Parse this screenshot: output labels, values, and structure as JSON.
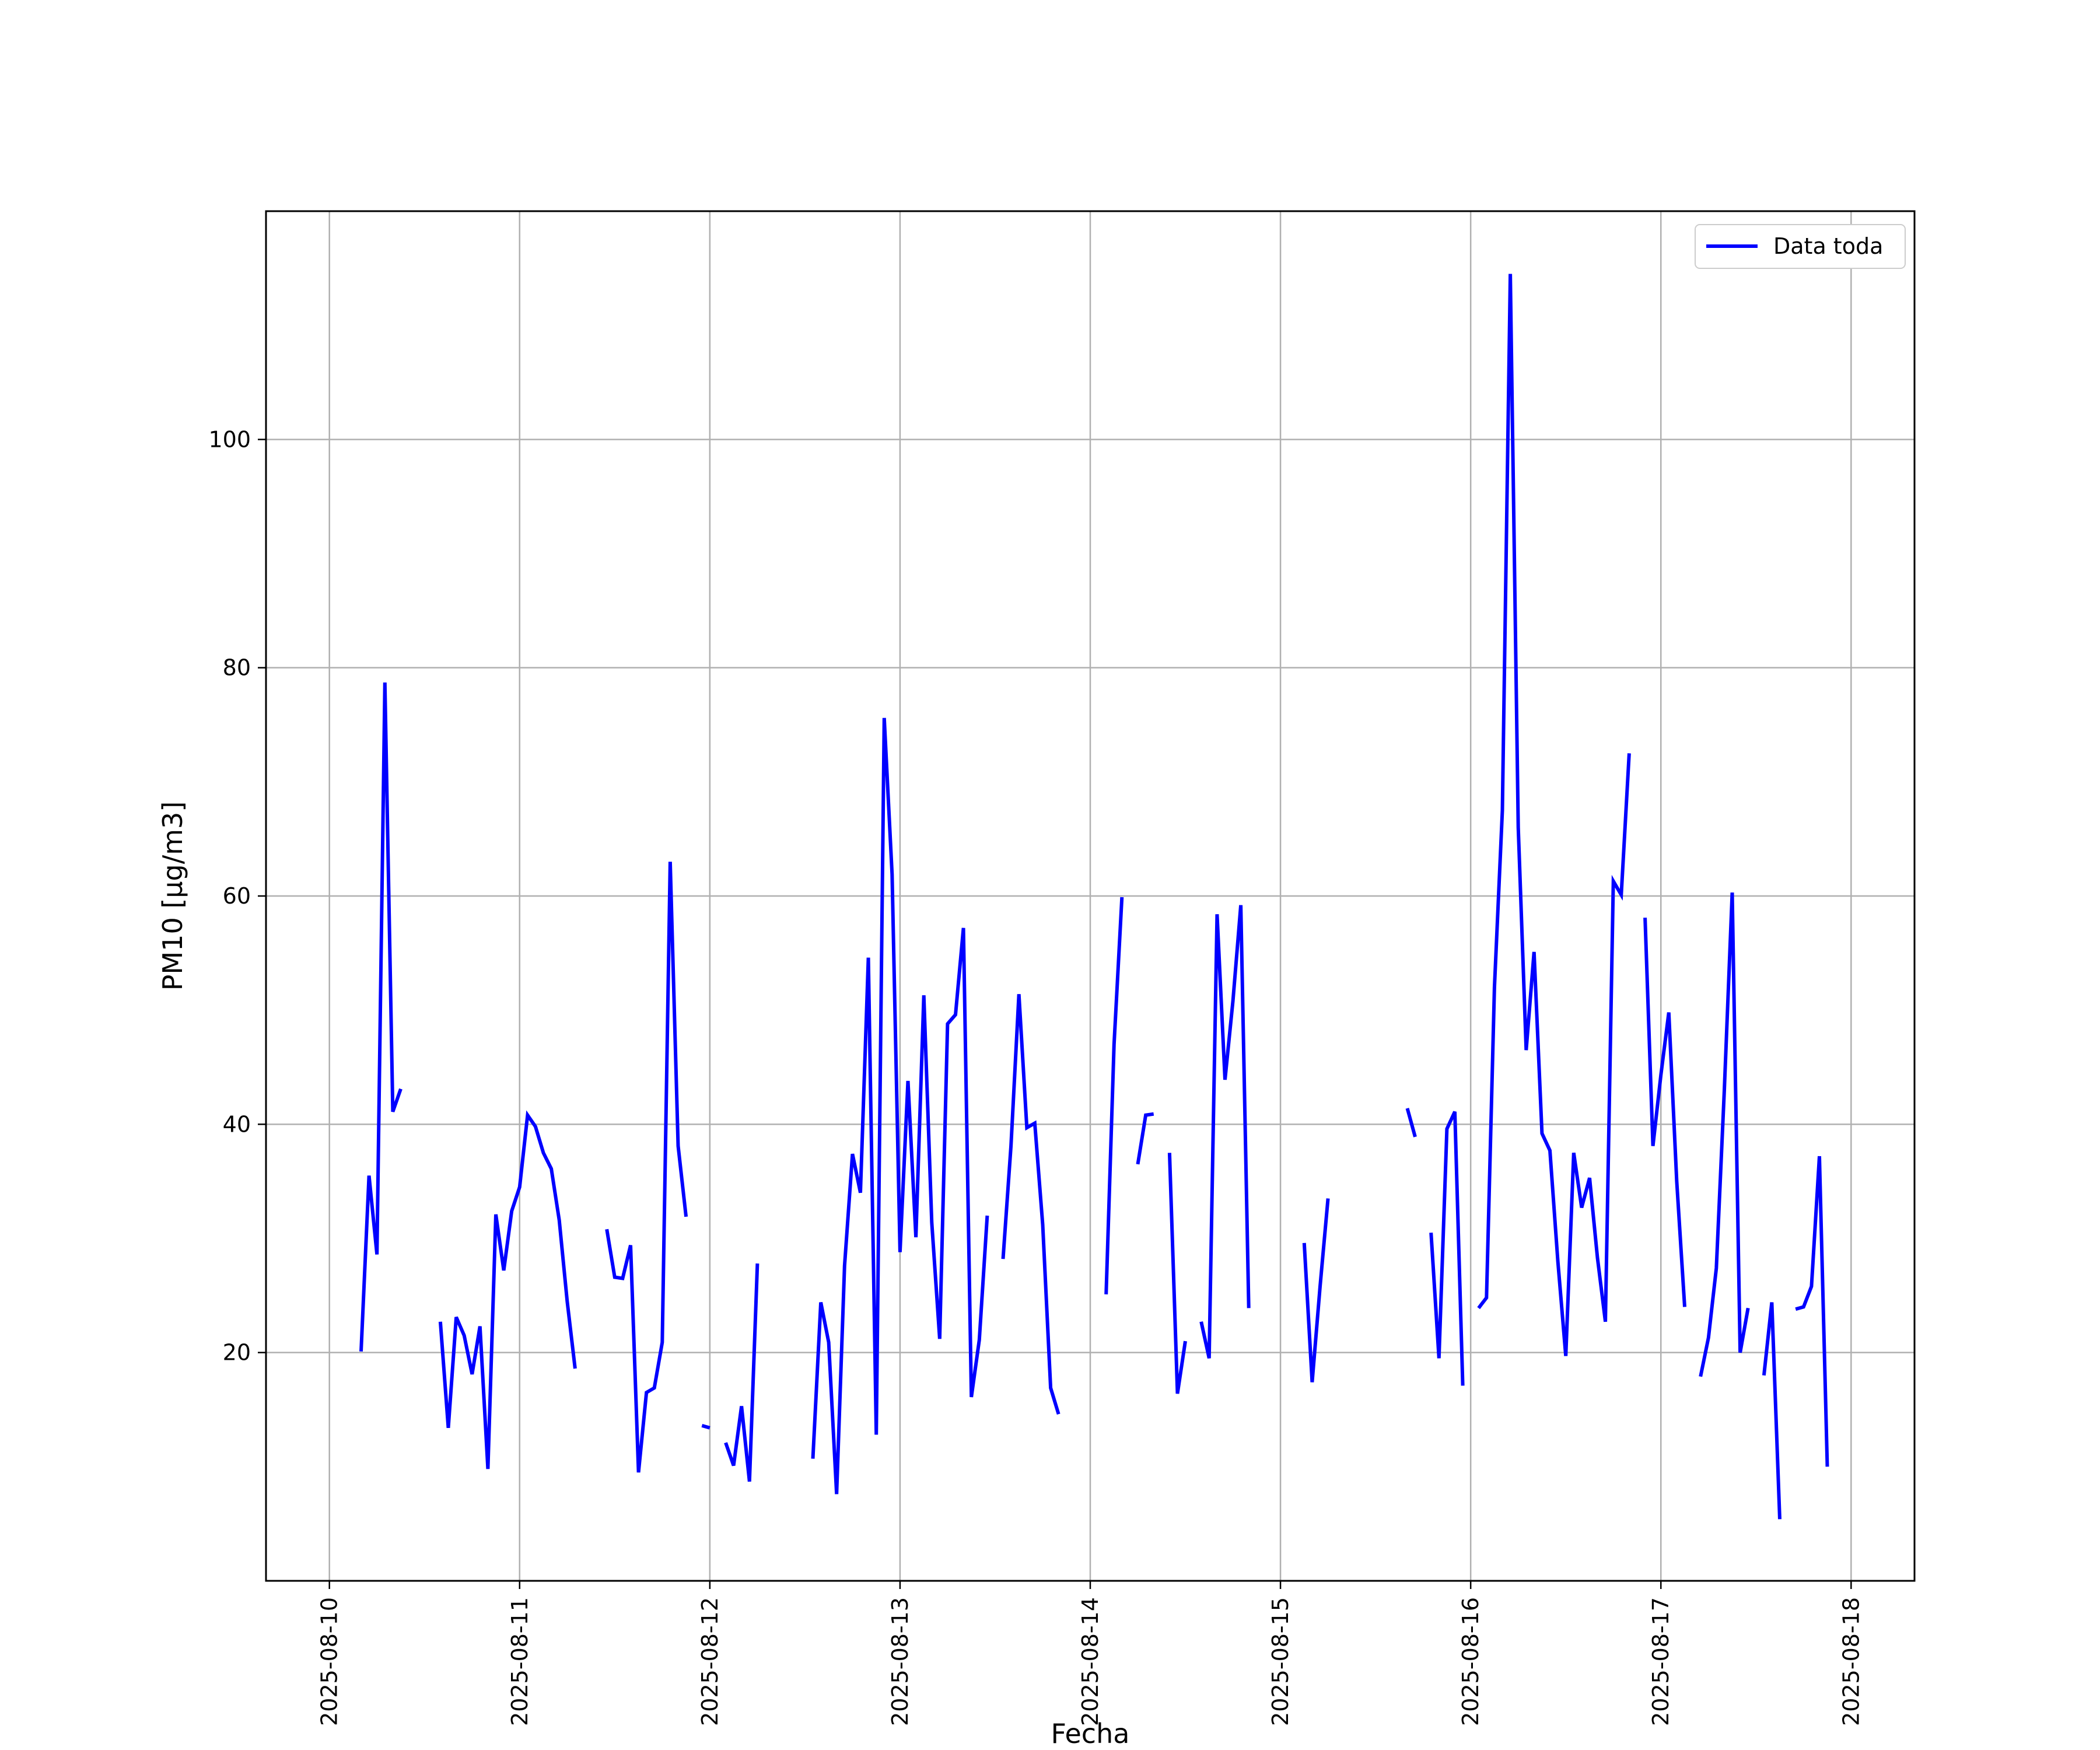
{
  "chart_data": {
    "type": "line",
    "title": "",
    "xlabel": "Fecha",
    "ylabel": "PM10 [μg/m3]",
    "xlim": [
      "2025-08-09T16:00",
      "2025-08-18T08:00"
    ],
    "ylim": [
      0,
      120
    ],
    "grid": true,
    "legend_position": "top-right",
    "x_tick_labels": [
      "2025-08-10",
      "2025-08-11",
      "2025-08-12",
      "2025-08-13",
      "2025-08-14",
      "2025-08-15",
      "2025-08-16",
      "2025-08-17",
      "2025-08-18"
    ],
    "y_ticks": [
      20,
      40,
      60,
      80,
      100
    ],
    "series": [
      {
        "name": "Data toda",
        "color": "#0000ff",
        "points": [
          [
            "2025-08-10T04:00",
            20.1
          ],
          [
            "2025-08-10T05:00",
            35.5
          ],
          [
            "2025-08-10T06:00",
            28.6
          ],
          [
            "2025-08-10T07:00",
            78.7
          ],
          [
            "2025-08-10T08:00",
            41.1
          ],
          [
            "2025-08-10T09:00",
            43.1
          ],
          [
            "2025-08-10T10:00",
            null
          ],
          [
            "2025-08-10T11:00",
            null
          ],
          [
            "2025-08-10T12:00",
            null
          ],
          [
            "2025-08-10T13:00",
            null
          ],
          [
            "2025-08-10T14:00",
            22.7
          ],
          [
            "2025-08-10T15:00",
            13.4
          ],
          [
            "2025-08-10T16:00",
            23.1
          ],
          [
            "2025-08-10T17:00",
            21.5
          ],
          [
            "2025-08-10T18:00",
            18.1
          ],
          [
            "2025-08-10T19:00",
            22.3
          ],
          [
            "2025-08-10T20:00",
            9.8
          ],
          [
            "2025-08-10T21:00",
            32.1
          ],
          [
            "2025-08-10T22:00",
            27.2
          ],
          [
            "2025-08-10T23:00",
            32.4
          ],
          [
            "2025-08-11T00:00",
            34.5
          ],
          [
            "2025-08-11T01:00",
            40.8
          ],
          [
            "2025-08-11T02:00",
            39.8
          ],
          [
            "2025-08-11T03:00",
            37.5
          ],
          [
            "2025-08-11T04:00",
            36.1
          ],
          [
            "2025-08-11T05:00",
            31.6
          ],
          [
            "2025-08-11T06:00",
            24.5
          ],
          [
            "2025-08-11T07:00",
            18.6
          ],
          [
            "2025-08-11T08:00",
            null
          ],
          [
            "2025-08-11T09:00",
            null
          ],
          [
            "2025-08-11T10:00",
            null
          ],
          [
            "2025-08-11T11:00",
            30.8
          ],
          [
            "2025-08-11T12:00",
            26.6
          ],
          [
            "2025-08-11T13:00",
            26.5
          ],
          [
            "2025-08-11T14:00",
            29.4
          ],
          [
            "2025-08-11T15:00",
            9.5
          ],
          [
            "2025-08-11T16:00",
            16.5
          ],
          [
            "2025-08-11T17:00",
            16.9
          ],
          [
            "2025-08-11T18:00",
            20.9
          ],
          [
            "2025-08-11T19:00",
            63.0
          ],
          [
            "2025-08-11T20:00",
            38.1
          ],
          [
            "2025-08-11T21:00",
            31.9
          ],
          [
            "2025-08-11T22:00",
            null
          ],
          [
            "2025-08-11T23:00",
            13.6
          ],
          [
            "2025-08-12T00:00",
            13.4
          ],
          [
            "2025-08-12T01:00",
            null
          ],
          [
            "2025-08-12T02:00",
            12.1
          ],
          [
            "2025-08-12T03:00",
            10.1
          ],
          [
            "2025-08-12T04:00",
            15.3
          ],
          [
            "2025-08-12T05:00",
            8.7
          ],
          [
            "2025-08-12T06:00",
            27.8
          ],
          [
            "2025-08-12T07:00",
            null
          ],
          [
            "2025-08-12T08:00",
            null
          ],
          [
            "2025-08-12T09:00",
            null
          ],
          [
            "2025-08-12T10:00",
            null
          ],
          [
            "2025-08-12T11:00",
            null
          ],
          [
            "2025-08-12T12:00",
            null
          ],
          [
            "2025-08-12T13:00",
            10.7
          ],
          [
            "2025-08-12T14:00",
            24.4
          ],
          [
            "2025-08-12T15:00",
            20.9
          ],
          [
            "2025-08-12T16:00",
            7.6
          ],
          [
            "2025-08-12T17:00",
            27.6
          ],
          [
            "2025-08-12T18:00",
            37.4
          ],
          [
            "2025-08-12T19:00",
            34.0
          ],
          [
            "2025-08-12T20:00",
            54.6
          ],
          [
            "2025-08-12T21:00",
            12.8
          ],
          [
            "2025-08-12T22:00",
            75.6
          ],
          [
            "2025-08-12T23:00",
            61.9
          ],
          [
            "2025-08-13T00:00",
            28.8
          ],
          [
            "2025-08-13T01:00",
            43.8
          ],
          [
            "2025-08-13T02:00",
            30.1
          ],
          [
            "2025-08-13T03:00",
            51.3
          ],
          [
            "2025-08-13T04:00",
            31.4
          ],
          [
            "2025-08-13T05:00",
            21.2
          ],
          [
            "2025-08-13T06:00",
            48.8
          ],
          [
            "2025-08-13T07:00",
            49.6
          ],
          [
            "2025-08-13T08:00",
            57.2
          ],
          [
            "2025-08-13T09:00",
            16.1
          ],
          [
            "2025-08-13T10:00",
            21.1
          ],
          [
            "2025-08-13T11:00",
            32.0
          ],
          [
            "2025-08-13T12:00",
            null
          ],
          [
            "2025-08-13T13:00",
            28.2
          ],
          [
            "2025-08-13T14:00",
            38.1
          ],
          [
            "2025-08-13T15:00",
            51.4
          ],
          [
            "2025-08-13T16:00",
            39.7
          ],
          [
            "2025-08-13T17:00",
            40.1
          ],
          [
            "2025-08-13T18:00",
            31.2
          ],
          [
            "2025-08-13T19:00",
            16.9
          ],
          [
            "2025-08-13T20:00",
            14.6
          ],
          [
            "2025-08-13T21:00",
            null
          ],
          [
            "2025-08-13T22:00",
            null
          ],
          [
            "2025-08-13T23:00",
            null
          ],
          [
            "2025-08-14T00:00",
            null
          ],
          [
            "2025-08-14T01:00",
            null
          ],
          [
            "2025-08-14T02:00",
            25.1
          ],
          [
            "2025-08-14T03:00",
            47.0
          ],
          [
            "2025-08-14T04:00",
            59.9
          ],
          [
            "2025-08-14T05:00",
            null
          ],
          [
            "2025-08-14T06:00",
            36.5
          ],
          [
            "2025-08-14T07:00",
            40.8
          ],
          [
            "2025-08-14T08:00",
            40.9
          ],
          [
            "2025-08-14T09:00",
            null
          ],
          [
            "2025-08-14T10:00",
            37.5
          ],
          [
            "2025-08-14T11:00",
            16.4
          ],
          [
            "2025-08-14T12:00",
            21.0
          ],
          [
            "2025-08-14T13:00",
            null
          ],
          [
            "2025-08-14T14:00",
            22.7
          ],
          [
            "2025-08-14T15:00",
            19.5
          ],
          [
            "2025-08-14T16:00",
            58.4
          ],
          [
            "2025-08-14T17:00",
            43.9
          ],
          [
            "2025-08-14T18:00",
            50.8
          ],
          [
            "2025-08-14T19:00",
            59.2
          ],
          [
            "2025-08-14T20:00",
            23.9
          ],
          [
            "2025-08-14T21:00",
            null
          ],
          [
            "2025-08-14T22:00",
            null
          ],
          [
            "2025-08-14T23:00",
            null
          ],
          [
            "2025-08-15T00:00",
            null
          ],
          [
            "2025-08-15T01:00",
            null
          ],
          [
            "2025-08-15T02:00",
            null
          ],
          [
            "2025-08-15T03:00",
            29.6
          ],
          [
            "2025-08-15T04:00",
            17.4
          ],
          [
            "2025-08-15T05:00",
            25.8
          ],
          [
            "2025-08-15T06:00",
            33.5
          ],
          [
            "2025-08-15T07:00",
            null
          ],
          [
            "2025-08-15T08:00",
            null
          ],
          [
            "2025-08-15T09:00",
            null
          ],
          [
            "2025-08-15T10:00",
            null
          ],
          [
            "2025-08-15T11:00",
            null
          ],
          [
            "2025-08-15T12:00",
            null
          ],
          [
            "2025-08-15T13:00",
            null
          ],
          [
            "2025-08-15T14:00",
            null
          ],
          [
            "2025-08-15T15:00",
            null
          ],
          [
            "2025-08-15T16:00",
            41.4
          ],
          [
            "2025-08-15T17:00",
            38.9
          ],
          [
            "2025-08-15T18:00",
            null
          ],
          [
            "2025-08-15T19:00",
            30.5
          ],
          [
            "2025-08-15T20:00",
            19.5
          ],
          [
            "2025-08-15T21:00",
            39.6
          ],
          [
            "2025-08-15T22:00",
            41.1
          ],
          [
            "2025-08-15T23:00",
            17.1
          ],
          [
            "2025-08-16T00:00",
            null
          ],
          [
            "2025-08-16T01:00",
            23.9
          ],
          [
            "2025-08-16T02:00",
            24.8
          ],
          [
            "2025-08-16T03:00",
            52.0
          ],
          [
            "2025-08-16T04:00",
            67.5
          ],
          [
            "2025-08-16T05:00",
            114.5
          ],
          [
            "2025-08-16T06:00",
            66.0
          ],
          [
            "2025-08-16T07:00",
            46.5
          ],
          [
            "2025-08-16T08:00",
            55.1
          ],
          [
            "2025-08-16T09:00",
            39.2
          ],
          [
            "2025-08-16T10:00",
            37.7
          ],
          [
            "2025-08-16T11:00",
            28.0
          ],
          [
            "2025-08-16T12:00",
            19.7
          ],
          [
            "2025-08-16T13:00",
            37.5
          ],
          [
            "2025-08-16T14:00",
            32.7
          ],
          [
            "2025-08-16T15:00",
            35.3
          ],
          [
            "2025-08-16T16:00",
            28.3
          ],
          [
            "2025-08-16T17:00",
            22.7
          ],
          [
            "2025-08-16T18:00",
            61.3
          ],
          [
            "2025-08-16T19:00",
            60.1
          ],
          [
            "2025-08-16T20:00",
            72.5
          ],
          [
            "2025-08-16T21:00",
            null
          ],
          [
            "2025-08-16T22:00",
            58.1
          ],
          [
            "2025-08-16T23:00",
            38.1
          ],
          [
            "2025-08-17T00:00",
            44.3
          ],
          [
            "2025-08-17T01:00",
            49.8
          ],
          [
            "2025-08-17T02:00",
            35.0
          ],
          [
            "2025-08-17T03:00",
            24.0
          ],
          [
            "2025-08-17T04:00",
            null
          ],
          [
            "2025-08-17T05:00",
            17.9
          ],
          [
            "2025-08-17T06:00",
            21.3
          ],
          [
            "2025-08-17T07:00",
            27.4
          ],
          [
            "2025-08-17T08:00",
            42.9
          ],
          [
            "2025-08-17T09:00",
            60.3
          ],
          [
            "2025-08-17T10:00",
            20.0
          ],
          [
            "2025-08-17T11:00",
            23.9
          ],
          [
            "2025-08-17T12:00",
            null
          ],
          [
            "2025-08-17T13:00",
            18.0
          ],
          [
            "2025-08-17T14:00",
            24.4
          ],
          [
            "2025-08-17T15:00",
            5.4
          ],
          [
            "2025-08-17T16:00",
            null
          ],
          [
            "2025-08-17T17:00",
            23.8
          ],
          [
            "2025-08-17T18:00",
            24.0
          ],
          [
            "2025-08-17T19:00",
            25.8
          ],
          [
            "2025-08-17T20:00",
            37.2
          ],
          [
            "2025-08-17T21:00",
            10.0
          ]
        ]
      }
    ]
  }
}
